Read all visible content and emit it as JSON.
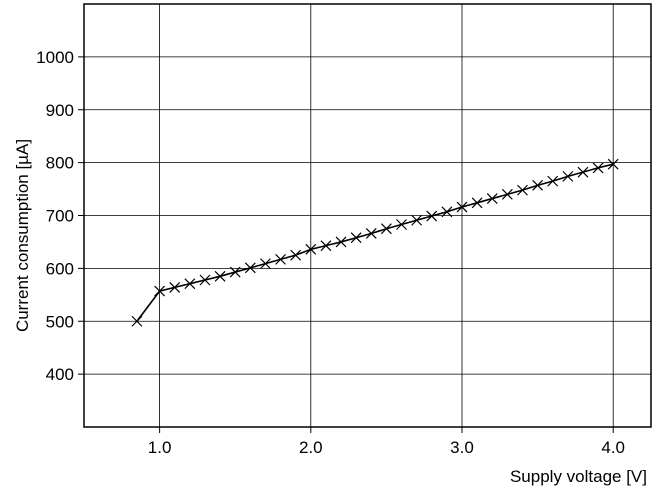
{
  "chart_data": {
    "type": "line",
    "title": "",
    "xlabel": "Supply voltage [V]",
    "ylabel": "Current consumption [µA]",
    "xlim": [
      0.5,
      4.25
    ],
    "ylim": [
      300,
      1100
    ],
    "xticks": [
      1.0,
      2.0,
      3.0,
      4.0
    ],
    "xtick_labels": [
      "1.0",
      "2.0",
      "3.0",
      "4.0"
    ],
    "yticks": [
      400,
      500,
      600,
      700,
      800,
      900,
      1000
    ],
    "ytick_labels": [
      "400",
      "500",
      "600",
      "700",
      "800",
      "900",
      "1000"
    ],
    "grid": true,
    "marker": "x",
    "line_color": "#000000",
    "series": [
      {
        "x": [
          0.85,
          1.0,
          1.1,
          1.2,
          1.3,
          1.4,
          1.5,
          1.6,
          1.7,
          1.8,
          1.9,
          2.0,
          2.1,
          2.2,
          2.3,
          2.4,
          2.5,
          2.6,
          2.7,
          2.8,
          2.9,
          3.0,
          3.1,
          3.2,
          3.3,
          3.4,
          3.5,
          3.6,
          3.7,
          3.8,
          3.9,
          4.0
        ],
        "y": [
          500,
          557,
          564,
          571,
          578,
          585,
          593,
          601,
          609,
          617,
          625,
          636,
          643,
          650,
          658,
          666,
          675,
          683,
          691,
          699,
          707,
          716,
          724,
          732,
          740,
          748,
          757,
          765,
          774,
          782,
          790,
          797
        ]
      }
    ]
  }
}
